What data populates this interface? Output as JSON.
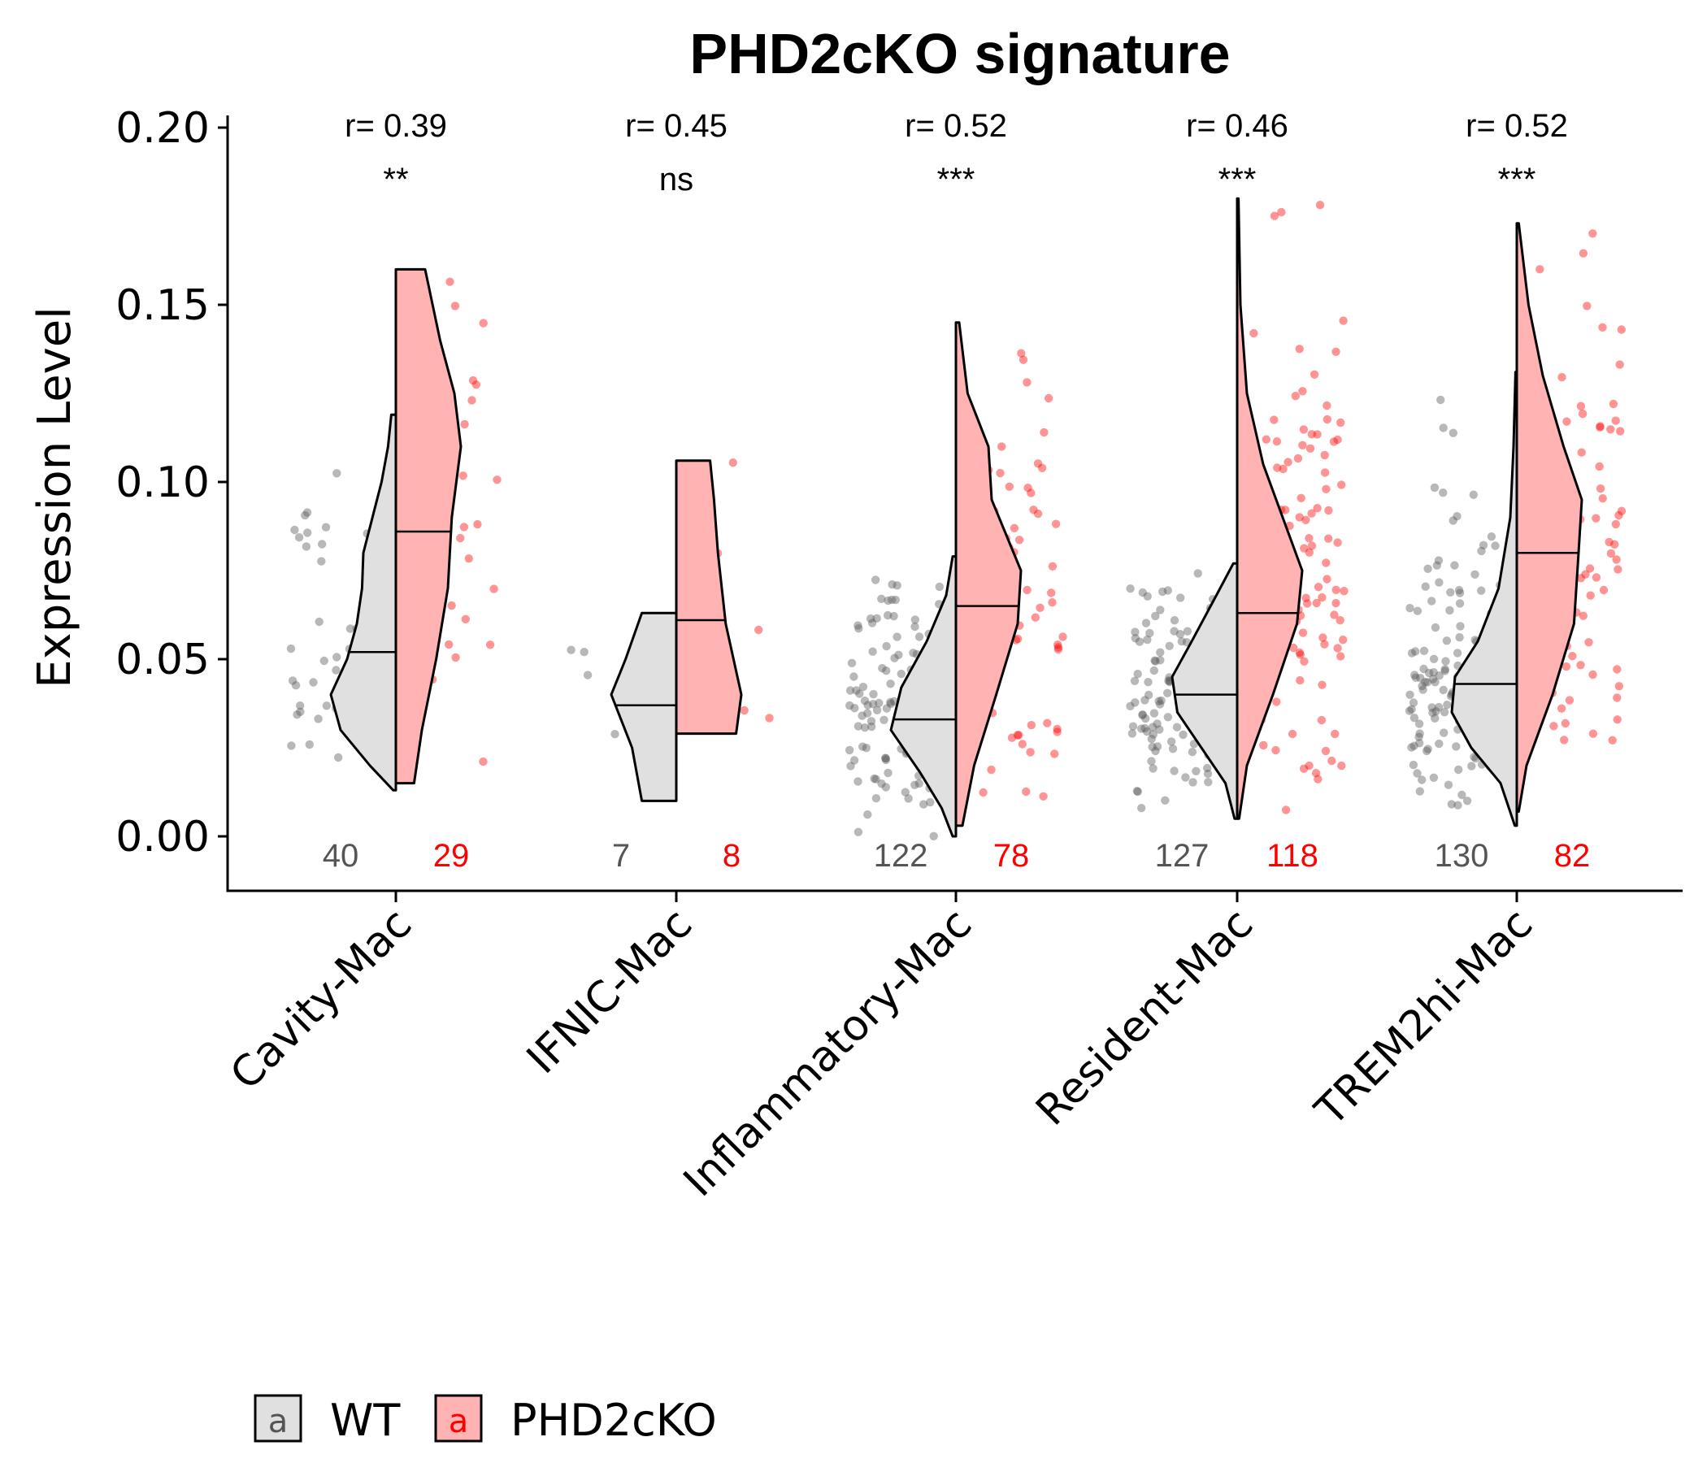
{
  "chart_data": {
    "type": "violin",
    "title": "PHD2cKO signature",
    "xlabel": "",
    "ylabel": "Expression Level",
    "ylim": [
      -0.015,
      0.205
    ],
    "yticks": [
      "0.00",
      "0.05",
      "0.10",
      "0.15",
      "0.20"
    ],
    "ytick_values": [
      0,
      0.05,
      0.1,
      0.15,
      0.2
    ],
    "grid": false,
    "legend_position": "bottom-left",
    "series": [
      {
        "name": "WT",
        "key": "wt",
        "fill": "#e0e0e0",
        "point": "#555555",
        "count_color": "#555555"
      },
      {
        "name": "PHD2cKO",
        "key": "ko",
        "fill": "#ffb3b3",
        "point": "#ff0000",
        "count_color": "#ff0000"
      }
    ],
    "legend_glyph": "a",
    "categories": [
      {
        "label": "Cavity-Mac",
        "r": "r= 0.39",
        "sig": "**",
        "wt": {
          "n": "40",
          "min": 0.013,
          "max": 0.119,
          "median": 0.052,
          "profile": [
            [
              0.013,
              0.04
            ],
            [
              0.02,
              0.4
            ],
            [
              0.03,
              0.85
            ],
            [
              0.04,
              1.0
            ],
            [
              0.05,
              0.75
            ],
            [
              0.06,
              0.6
            ],
            [
              0.07,
              0.52
            ],
            [
              0.08,
              0.5
            ],
            [
              0.09,
              0.36
            ],
            [
              0.1,
              0.22
            ],
            [
              0.11,
              0.12
            ],
            [
              0.119,
              0.07
            ]
          ]
        },
        "ko": {
          "n": "29",
          "min": 0.015,
          "max": 0.16,
          "median": 0.086,
          "profile": [
            [
              0.015,
              0.28
            ],
            [
              0.03,
              0.4
            ],
            [
              0.05,
              0.62
            ],
            [
              0.07,
              0.8
            ],
            [
              0.09,
              0.86
            ],
            [
              0.11,
              1.0
            ],
            [
              0.125,
              0.9
            ],
            [
              0.14,
              0.68
            ],
            [
              0.16,
              0.45
            ]
          ]
        }
      },
      {
        "label": "IFNIC-Mac",
        "r": "r= 0.45",
        "sig": "ns",
        "wt": {
          "n": "7",
          "min": 0.01,
          "max": 0.063,
          "median": 0.037,
          "profile": [
            [
              0.01,
              0.53
            ],
            [
              0.025,
              0.68
            ],
            [
              0.04,
              1.0
            ],
            [
              0.05,
              0.78
            ],
            [
              0.063,
              0.53
            ]
          ]
        },
        "ko": {
          "n": "8",
          "min": 0.029,
          "max": 0.106,
          "median": 0.061,
          "profile": [
            [
              0.029,
              0.92
            ],
            [
              0.04,
              1.0
            ],
            [
              0.06,
              0.76
            ],
            [
              0.08,
              0.64
            ],
            [
              0.095,
              0.58
            ],
            [
              0.106,
              0.52
            ]
          ]
        }
      },
      {
        "label": "Inflammatory-Mac",
        "r": "r= 0.52",
        "sig": "***",
        "wt": {
          "n": "122",
          "min": 0.0,
          "max": 0.079,
          "median": 0.033,
          "profile": [
            [
              0.0,
              0.05
            ],
            [
              0.008,
              0.22
            ],
            [
              0.018,
              0.55
            ],
            [
              0.03,
              1.0
            ],
            [
              0.042,
              0.84
            ],
            [
              0.055,
              0.45
            ],
            [
              0.068,
              0.15
            ],
            [
              0.079,
              0.05
            ]
          ]
        },
        "ko": {
          "n": "78",
          "min": 0.003,
          "max": 0.145,
          "median": 0.065,
          "profile": [
            [
              0.003,
              0.1
            ],
            [
              0.02,
              0.28
            ],
            [
              0.04,
              0.62
            ],
            [
              0.06,
              0.95
            ],
            [
              0.075,
              1.0
            ],
            [
              0.095,
              0.55
            ],
            [
              0.11,
              0.5
            ],
            [
              0.125,
              0.18
            ],
            [
              0.145,
              0.05
            ]
          ]
        }
      },
      {
        "label": "Resident-Mac",
        "r": "r= 0.46",
        "sig": "***",
        "wt": {
          "n": "127",
          "min": 0.005,
          "max": 0.077,
          "median": 0.04,
          "profile": [
            [
              0.005,
              0.04
            ],
            [
              0.015,
              0.18
            ],
            [
              0.025,
              0.55
            ],
            [
              0.035,
              0.92
            ],
            [
              0.045,
              1.0
            ],
            [
              0.055,
              0.7
            ],
            [
              0.068,
              0.32
            ],
            [
              0.077,
              0.06
            ]
          ]
        },
        "ko": {
          "n": "118",
          "min": 0.005,
          "max": 0.18,
          "median": 0.063,
          "profile": [
            [
              0.005,
              0.03
            ],
            [
              0.02,
              0.15
            ],
            [
              0.04,
              0.55
            ],
            [
              0.06,
              0.92
            ],
            [
              0.075,
              1.0
            ],
            [
              0.09,
              0.7
            ],
            [
              0.105,
              0.4
            ],
            [
              0.125,
              0.15
            ],
            [
              0.15,
              0.05
            ],
            [
              0.18,
              0.02
            ]
          ]
        }
      },
      {
        "label": "TREM2hi-Mac",
        "r": "r= 0.52",
        "sig": "***",
        "wt": {
          "n": "130",
          "min": 0.003,
          "max": 0.131,
          "median": 0.043,
          "profile": [
            [
              0.003,
              0.03
            ],
            [
              0.015,
              0.25
            ],
            [
              0.025,
              0.7
            ],
            [
              0.035,
              1.0
            ],
            [
              0.045,
              0.95
            ],
            [
              0.055,
              0.6
            ],
            [
              0.07,
              0.28
            ],
            [
              0.09,
              0.1
            ],
            [
              0.11,
              0.05
            ],
            [
              0.131,
              0.02
            ]
          ]
        },
        "ko": {
          "n": "82",
          "min": 0.007,
          "max": 0.173,
          "median": 0.08,
          "profile": [
            [
              0.007,
              0.03
            ],
            [
              0.02,
              0.15
            ],
            [
              0.04,
              0.55
            ],
            [
              0.06,
              0.88
            ],
            [
              0.08,
              0.95
            ],
            [
              0.095,
              1.0
            ],
            [
              0.11,
              0.72
            ],
            [
              0.13,
              0.4
            ],
            [
              0.15,
              0.18
            ],
            [
              0.173,
              0.03
            ]
          ]
        }
      }
    ]
  }
}
